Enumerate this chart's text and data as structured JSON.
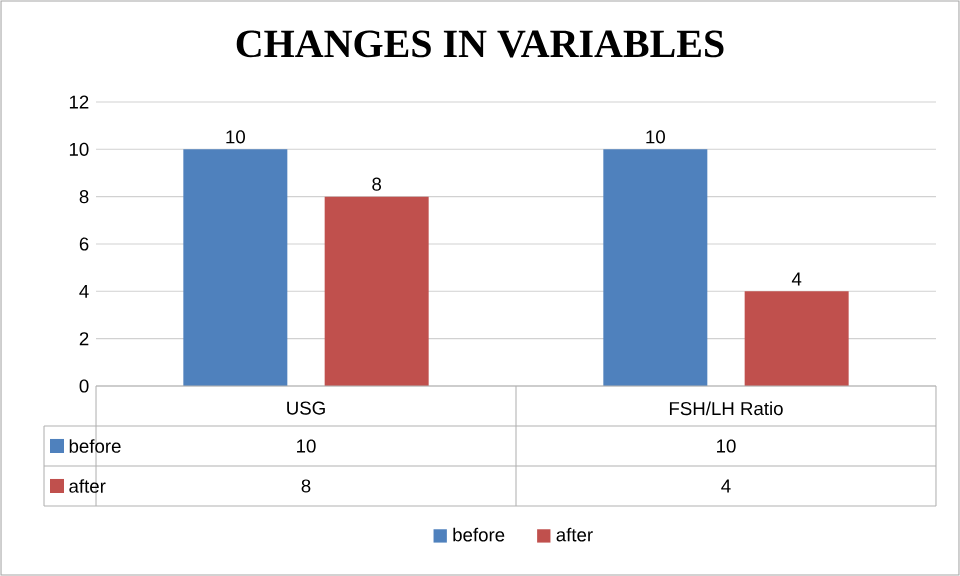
{
  "chart_data": {
    "type": "bar",
    "title": "CHANGES IN VARIABLES",
    "categories": [
      "USG",
      "FSH/LH Ratio"
    ],
    "series": [
      {
        "name": "before",
        "color": "#4f81bd",
        "values": [
          10,
          10
        ],
        "value_labels": [
          "10",
          "10"
        ]
      },
      {
        "name": "after",
        "color": "#c0504d",
        "values": [
          8,
          4
        ],
        "value_labels": [
          "8",
          "4"
        ]
      }
    ],
    "ylim": [
      0,
      12
    ],
    "yticks": [
      0,
      2,
      4,
      6,
      8,
      10,
      12
    ],
    "grid": "y",
    "legend": "bottom",
    "data_labels": true
  }
}
